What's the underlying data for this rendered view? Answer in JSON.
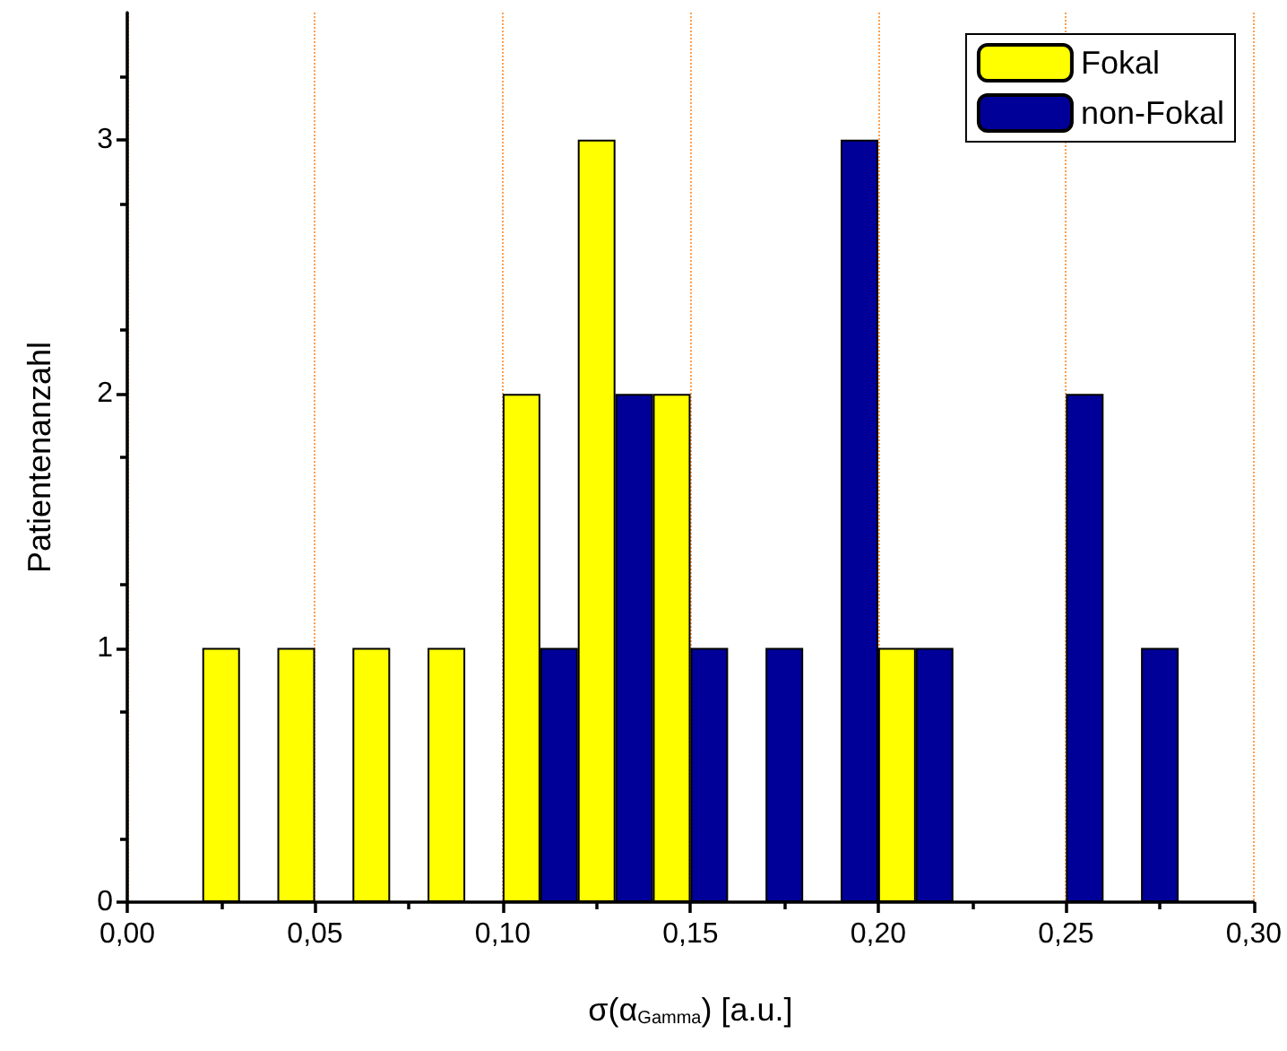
{
  "chart_data": {
    "type": "bar",
    "xlabel": "σ(α$_{Gamma}$) [a.u.]",
    "ylabel": "Patientenanzahl",
    "series": [
      {
        "name": "Fokal",
        "color": "#ffff00",
        "x": [
          0.025,
          0.045,
          0.065,
          0.085,
          0.105,
          0.125,
          0.145,
          0.205
        ],
        "values": [
          1,
          1,
          1,
          1,
          2,
          3,
          2,
          1
        ]
      },
      {
        "name": "non-Fokal",
        "color": "#000099",
        "x": [
          0.115,
          0.135,
          0.155,
          0.175,
          0.195,
          0.215,
          0.255,
          0.275
        ],
        "values": [
          1,
          2,
          1,
          1,
          3,
          1,
          2,
          1
        ]
      }
    ],
    "xlim": [
      0,
      0.3
    ],
    "xticks": [
      {
        "value": 0,
        "label": "0,00"
      },
      {
        "value": 0.05,
        "label": "0,05"
      },
      {
        "value": 0.1,
        "label": "0,10"
      },
      {
        "value": 0.15,
        "label": "0,15"
      },
      {
        "value": 0.2,
        "label": "0,20"
      },
      {
        "value": 0.25,
        "label": "0,25"
      },
      {
        "value": 0.3,
        "label": "0,30"
      }
    ],
    "ylim": [
      0,
      3.5
    ],
    "yticks": [
      0,
      1,
      2,
      3
    ],
    "grid": "x",
    "legend": "top right"
  }
}
